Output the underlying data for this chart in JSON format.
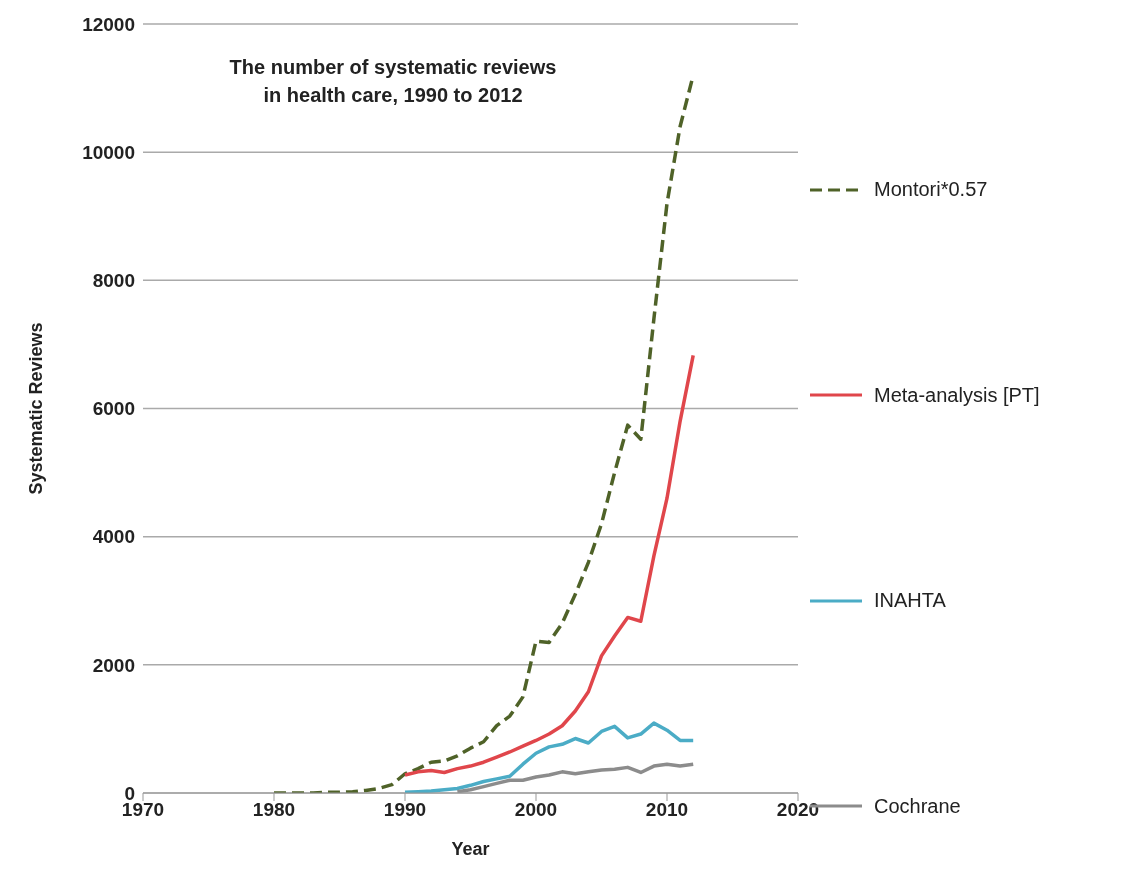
{
  "chart_data": {
    "type": "line",
    "title": "The number of systematic reviews\nin health care, 1990 to 2012",
    "xlabel": "Year",
    "ylabel": "Systematic Reviews",
    "xlim": [
      1970,
      2020
    ],
    "xticks": [
      1970,
      1980,
      1990,
      2000,
      2010,
      2020
    ],
    "ylim": [
      0,
      12000
    ],
    "yticks": [
      0,
      2000,
      4000,
      6000,
      8000,
      10000,
      12000
    ],
    "grid": "y",
    "legend": "right",
    "marker": "none",
    "series": [
      {
        "name": "Montori*0.57",
        "color": "#4f6228",
        "line_style": "dashed",
        "x": [
          1980,
          1981,
          1982,
          1983,
          1984,
          1985,
          1986,
          1987,
          1988,
          1989,
          1990,
          1991,
          1992,
          1993,
          1994,
          1995,
          1996,
          1997,
          1998,
          1999,
          2000,
          2001,
          2002,
          2003,
          2004,
          2005,
          2006,
          2007,
          2008,
          2009,
          2010,
          2011,
          2012
        ],
        "values": [
          0,
          0,
          0,
          0,
          10,
          10,
          20,
          40,
          70,
          130,
          300,
          380,
          480,
          500,
          580,
          700,
          800,
          1050,
          1200,
          1500,
          2370,
          2350,
          2650,
          3100,
          3600,
          4200,
          5000,
          5740,
          5520,
          7400,
          9200,
          10400,
          11200
        ]
      },
      {
        "name": "Meta-analysis [PT]",
        "color": "#e0464b",
        "line_style": "solid",
        "x": [
          1990,
          1991,
          1992,
          1993,
          1994,
          1995,
          1996,
          1997,
          1998,
          1999,
          2000,
          2001,
          2002,
          2003,
          2004,
          2005,
          2006,
          2007,
          2008,
          2009,
          2010,
          2011,
          2012
        ],
        "values": [
          280,
          330,
          350,
          320,
          380,
          420,
          480,
          560,
          640,
          730,
          820,
          920,
          1050,
          1280,
          1580,
          2140,
          2450,
          2740,
          2680,
          3700,
          4600,
          5800,
          6830
        ]
      },
      {
        "name": "INAHTA",
        "color": "#4bacc6",
        "line_style": "solid",
        "x": [
          1990,
          1991,
          1992,
          1993,
          1994,
          1995,
          1996,
          1997,
          1998,
          1999,
          2000,
          2001,
          2002,
          2003,
          2004,
          2005,
          2006,
          2007,
          2008,
          2009,
          2010,
          2011,
          2012
        ],
        "values": [
          10,
          20,
          30,
          50,
          70,
          120,
          180,
          220,
          260,
          450,
          620,
          720,
          760,
          850,
          780,
          960,
          1040,
          860,
          920,
          1090,
          980,
          820,
          820
        ]
      },
      {
        "name": "Cochrane",
        "color": "#8c8c8c",
        "line_style": "solid",
        "x": [
          1994,
          1995,
          1996,
          1997,
          1998,
          1999,
          2000,
          2001,
          2002,
          2003,
          2004,
          2005,
          2006,
          2007,
          2008,
          2009,
          2010,
          2011,
          2012
        ],
        "values": [
          20,
          50,
          100,
          150,
          200,
          200,
          250,
          280,
          330,
          300,
          330,
          360,
          370,
          400,
          320,
          420,
          450,
          420,
          450
        ]
      }
    ]
  }
}
